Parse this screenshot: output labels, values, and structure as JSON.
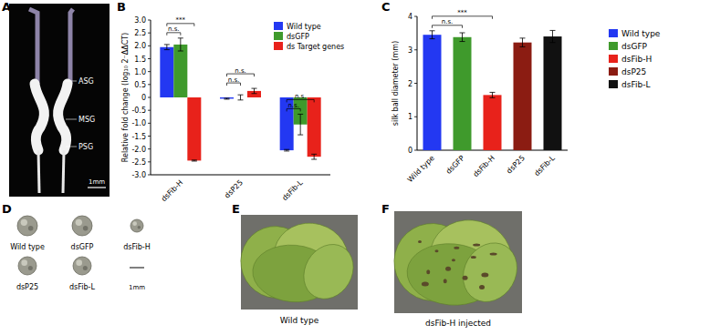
{
  "panels": {
    "A": {
      "letter": "A",
      "labels": [
        "ASG",
        "MSG",
        "PSG"
      ],
      "scale": "1mm"
    },
    "D": {
      "letter": "D",
      "labels": [
        "Wild type",
        "dsGFP",
        "dsFib-H",
        "dsP25",
        "dsFib-L"
      ],
      "scale": "1mm"
    },
    "E": {
      "letter": "E",
      "caption": "Wild type"
    },
    "F": {
      "letter": "F",
      "caption": "dsFib-H injected"
    }
  },
  "chart_data": [
    {
      "panel": "B",
      "type": "bar",
      "y_label": "Relative fold change (log₁₀ 2⁻ΔΔCT)",
      "categories": [
        "dsFib-H",
        "dsP25",
        "dsFib-L"
      ],
      "series": [
        {
          "name": "Wild type",
          "color": "#2338f2",
          "values": [
            1.95,
            -0.05,
            -2.05
          ],
          "error": [
            0.1,
            0.02,
            0.03
          ]
        },
        {
          "name": "dsGFP",
          "color": "#3f9a2c",
          "values": [
            2.05,
            0.0,
            -1.05
          ],
          "error": [
            0.25,
            0.1,
            0.4
          ]
        },
        {
          "name": "ds Target genes",
          "color": "#e8221b",
          "values": [
            -2.45,
            0.25,
            -2.3
          ],
          "error": [
            0.02,
            0.1,
            0.1
          ]
        }
      ],
      "annotations": [
        {
          "label": "n.s.",
          "category": "dsFib-H",
          "between": [
            "Wild type",
            "dsGFP"
          ]
        },
        {
          "label": "***",
          "category": "dsFib-H",
          "between": [
            "Wild type",
            "ds Target genes"
          ]
        },
        {
          "label": "n.s.",
          "category": "dsP25",
          "between": [
            "Wild type",
            "dsGFP"
          ]
        },
        {
          "label": "n.s.",
          "category": "dsP25",
          "between": [
            "Wild type",
            "ds Target genes"
          ]
        },
        {
          "label": "n.s.",
          "category": "dsFib-L",
          "between": [
            "Wild type",
            "dsGFP"
          ]
        },
        {
          "label": "n.s.",
          "category": "dsFib-L",
          "between": [
            "Wild type",
            "ds Target genes"
          ]
        }
      ],
      "ylim": [
        -3,
        3
      ],
      "yticks": [
        {
          "value": -3,
          "label": "-3.0"
        },
        -2.5,
        {
          "value": -2,
          "label": "-2.0"
        },
        -1.5,
        {
          "value": -1,
          "label": "-1.0"
        },
        -0.5,
        0,
        0.5,
        {
          "value": 1,
          "label": "1.0"
        },
        1.5,
        {
          "value": 2,
          "label": "2.0"
        },
        2.5,
        {
          "value": 3,
          "label": "3.0"
        }
      ],
      "grid": false,
      "legend": "upper right"
    },
    {
      "panel": "C",
      "type": "bar",
      "y_label": "silk ball diameter (mm)",
      "categories": [
        "Wild type",
        "dsGFP",
        "dsFib-H",
        "dsP25",
        "dsFib-L"
      ],
      "values": [
        3.45,
        3.38,
        1.65,
        3.22,
        3.4
      ],
      "error": [
        0.12,
        0.13,
        0.08,
        0.13,
        0.18
      ],
      "colors": [
        "#2338f2",
        "#3f9a2c",
        "#e8221b",
        "#8b1c12",
        "#111111"
      ],
      "annotations": [
        {
          "label": "n.s.",
          "between": [
            "Wild type",
            "dsGFP"
          ]
        },
        {
          "label": "***",
          "between": [
            "Wild type",
            "dsFib-H"
          ]
        }
      ],
      "ylim": [
        0,
        4
      ],
      "yticks": [
        0,
        1,
        2,
        3,
        4
      ],
      "grid": false,
      "legend": "right"
    }
  ]
}
